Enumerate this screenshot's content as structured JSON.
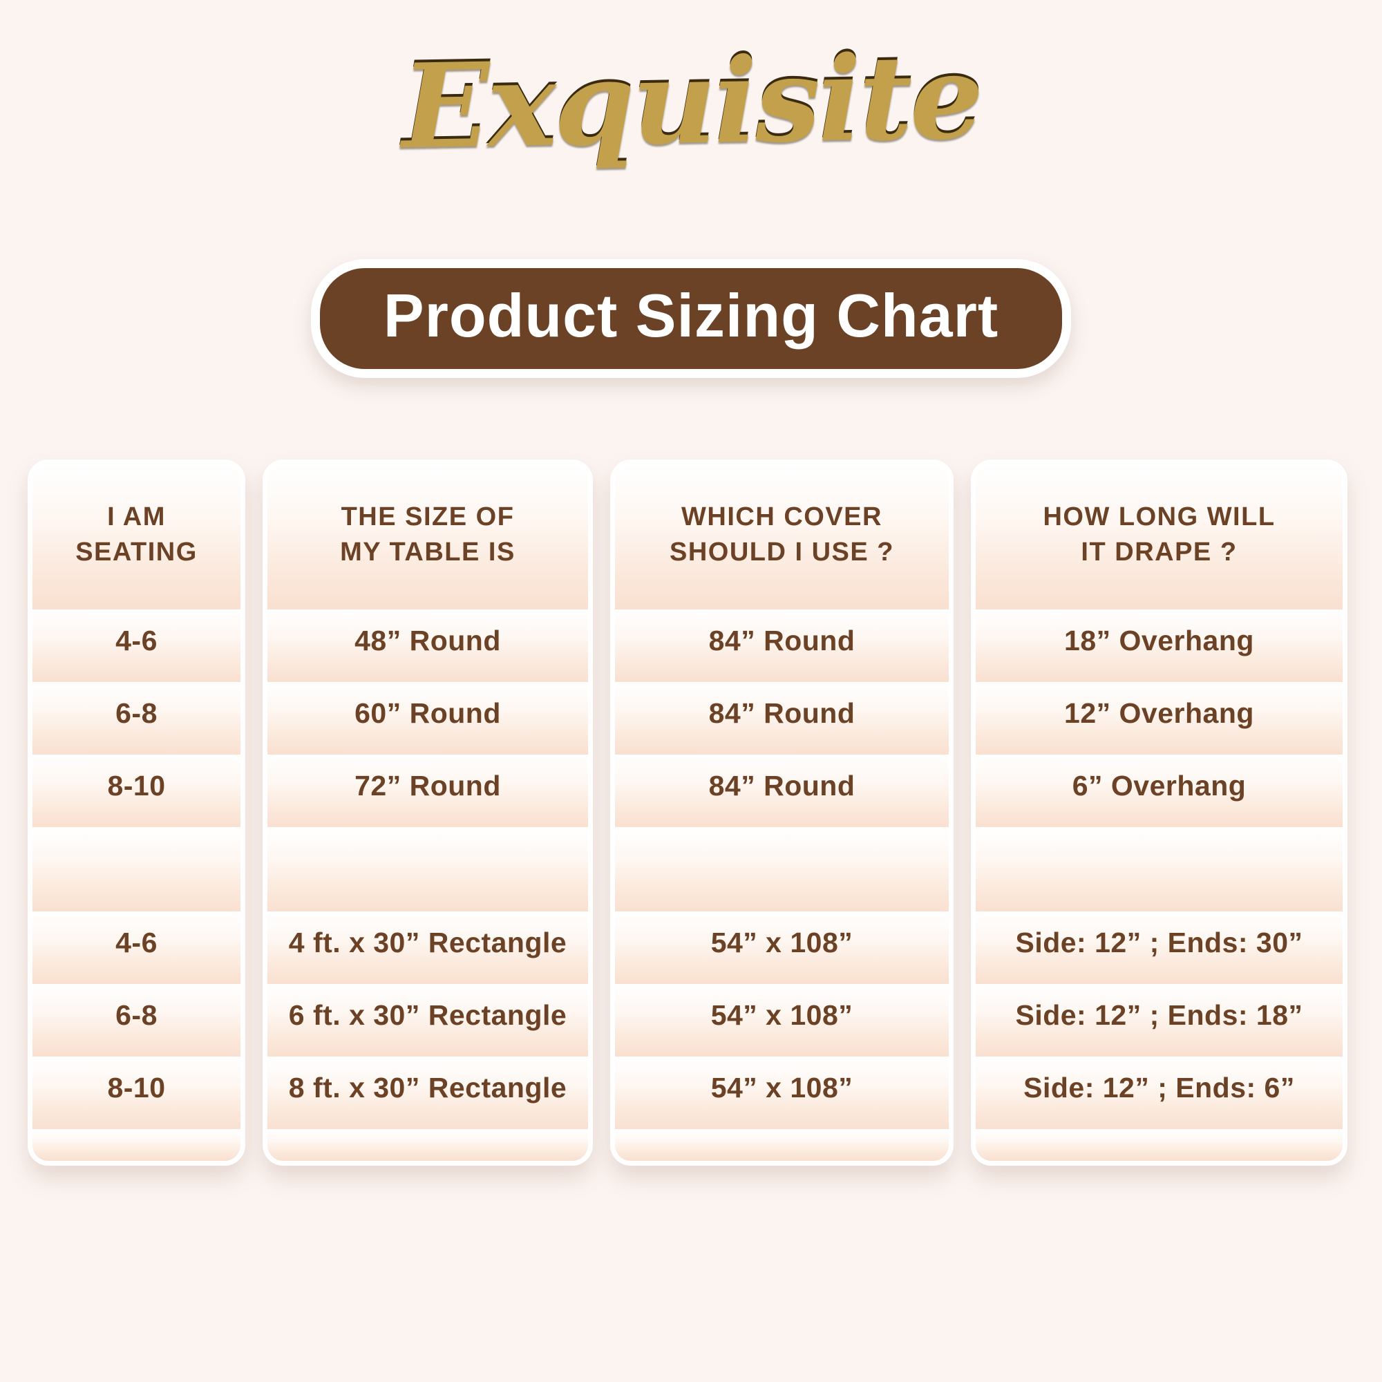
{
  "brand": {
    "logo_text": "Exquisite",
    "logo_color": "#c3a14c"
  },
  "title": "Product Sizing Chart",
  "colors": {
    "page_background": "#fbf4f1",
    "accent_brown": "#6b4226",
    "title_text": "#ffffff",
    "row_peach": "#f9e0d0",
    "card_background": "#ffffff"
  },
  "table": {
    "columns": [
      {
        "header": "I AM\nSEATING"
      },
      {
        "header": "THE SIZE OF\nMY TABLE IS"
      },
      {
        "header": "WHICH COVER\nSHOULD I USE ?"
      },
      {
        "header": "HOW LONG WILL\nIT DRAPE ?"
      }
    ],
    "rows": [
      {
        "seating": "4-6",
        "table_size": "48” Round",
        "cover": "84” Round",
        "drape": "18” Overhang"
      },
      {
        "seating": "6-8",
        "table_size": "60” Round",
        "cover": "84” Round",
        "drape": "12” Overhang"
      },
      {
        "seating": "8-10",
        "table_size": "72” Round",
        "cover": "84” Round",
        "drape": "6” Overhang"
      },
      {
        "seating": "",
        "table_size": "",
        "cover": "",
        "drape": ""
      },
      {
        "seating": "4-6",
        "table_size": "4 ft. x 30” Rectangle",
        "cover": "54” x 108”",
        "drape": "Side: 12” ; Ends: 30”"
      },
      {
        "seating": "6-8",
        "table_size": "6 ft. x 30” Rectangle",
        "cover": "54” x 108”",
        "drape": "Side: 12” ; Ends: 18”"
      },
      {
        "seating": "8-10",
        "table_size": "8 ft. x 30” Rectangle",
        "cover": "54” x 108”",
        "drape": "Side: 12” ; Ends: 6”"
      }
    ]
  }
}
